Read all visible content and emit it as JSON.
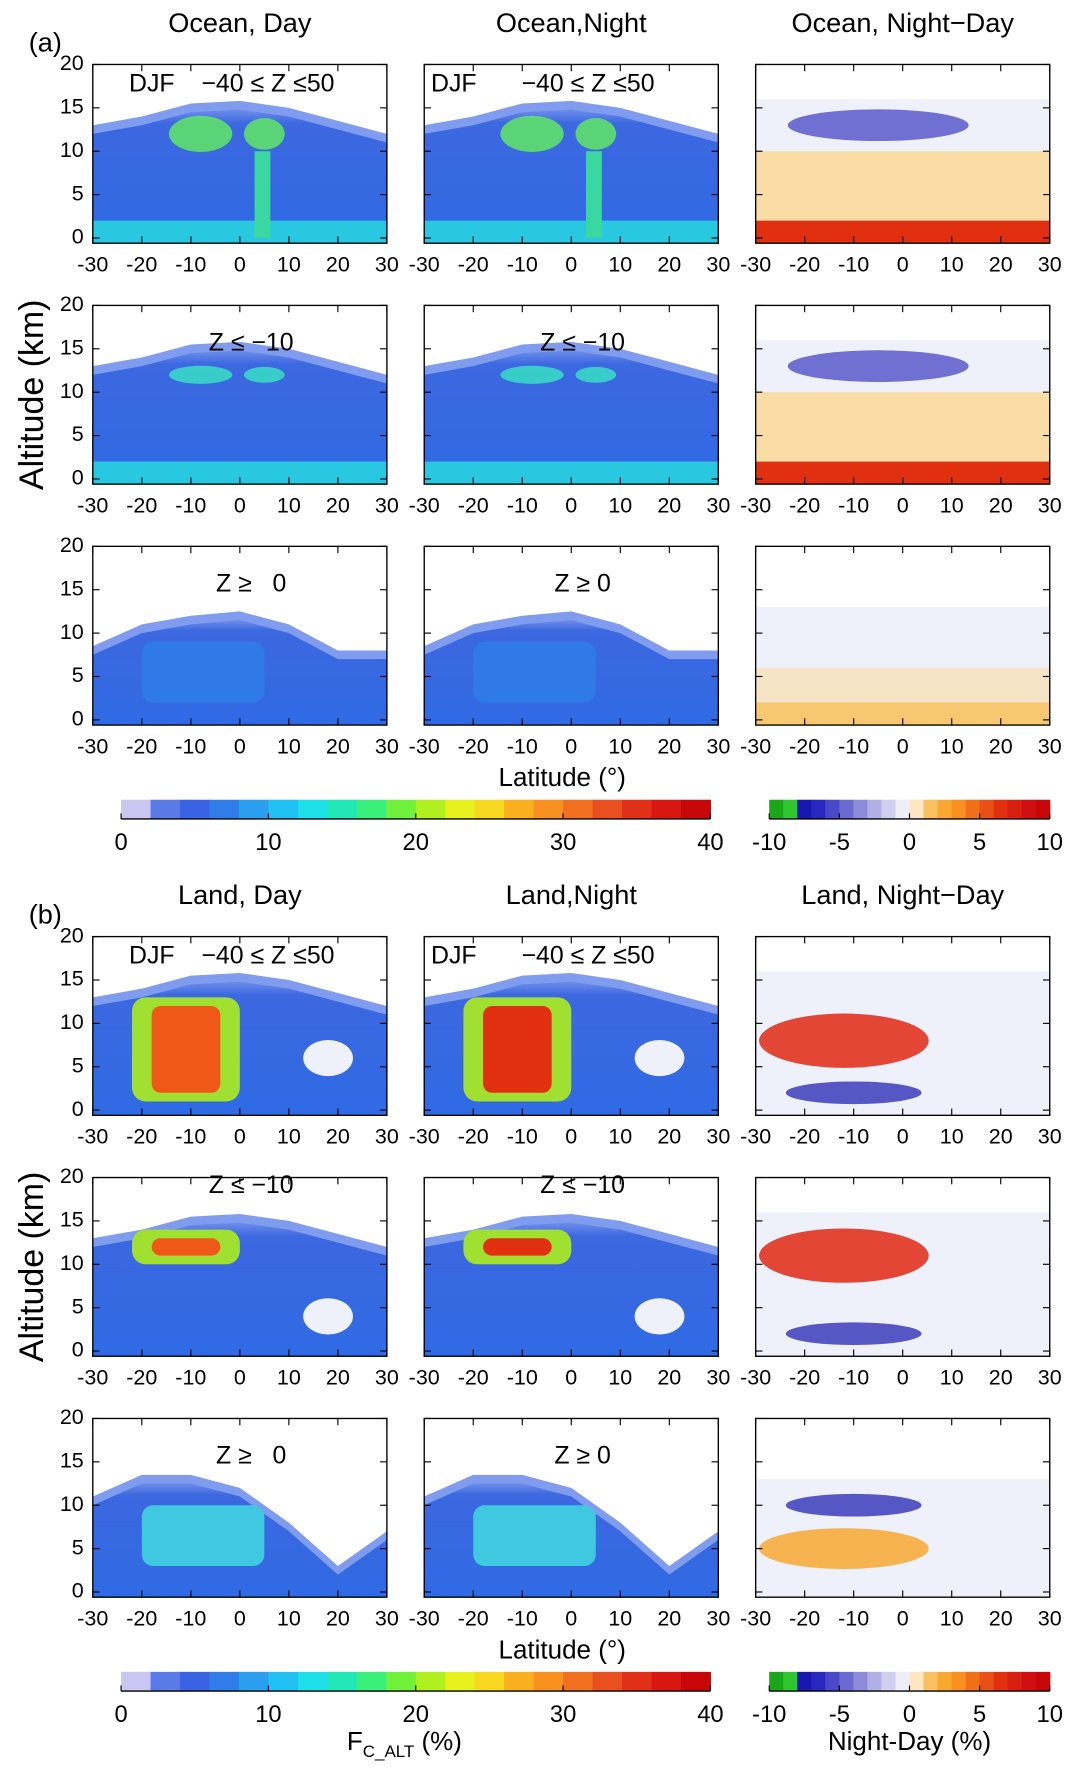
{
  "chart_data": {
    "type": "heatmap-grid",
    "xlim": [
      -30,
      30
    ],
    "xticks": [
      -30,
      -20,
      -10,
      0,
      10,
      20,
      30
    ],
    "ylim": [
      -0.6,
      20
    ],
    "yticks": [
      0,
      5,
      10,
      15,
      20
    ],
    "groups": [
      {
        "label": "(a)",
        "column_titles": [
          "Ocean, Day",
          "Ocean,Night",
          "Ocean, Night−Day"
        ],
        "rows": [
          [
            [
              "DJF",
              "−40 ≤ Z ≤50"
            ],
            [
              "DJF",
              "−40 ≤ Z ≤50"
            ]
          ],
          [
            [
              "Z ≤ −10"
            ],
            [
              "Z ≤ −10"
            ]
          ],
          [
            [
              "Z ≥   0"
            ],
            [
              "Z ≥ 0"
            ]
          ]
        ],
        "y_label": "Altitude (km)",
        "x_label": "Latitude (°)"
      },
      {
        "label": "(b)",
        "column_titles": [
          "Land, Day",
          "Land,Night",
          "Land, Night−Day"
        ],
        "rows": [
          [
            [
              "DJF",
              "−40 ≤ Z ≤50"
            ],
            [
              "DJF",
              "−40 ≤ Z ≤50"
            ]
          ],
          [
            [
              "Z ≤ −10"
            ],
            [
              "Z ≤ −10"
            ]
          ],
          [
            [
              "Z ≥   0"
            ],
            [
              "Z ≥ 0"
            ]
          ]
        ],
        "y_label": "Altitude (km)",
        "x_label": "Latitude (°)"
      }
    ],
    "colorbars": [
      {
        "lim": [
          0,
          40
        ],
        "ticks": [
          0,
          10,
          20,
          30,
          40
        ],
        "colors": [
          "#c9c6f2",
          "#5a7ae8",
          "#3a63e3",
          "#2f7de8",
          "#2a9ff0",
          "#21c0f2",
          "#1ee0e8",
          "#22e8b8",
          "#3af07a",
          "#70f23a",
          "#b0f01e",
          "#e8f01e",
          "#f8d81e",
          "#f8b01e",
          "#f89020",
          "#f07020",
          "#e85020",
          "#e03018",
          "#d81810",
          "#c80808"
        ],
        "label": {
          "main": "F",
          "sub": "C_ALT",
          "unit": " (%)"
        }
      },
      {
        "lim": [
          -10,
          10
        ],
        "ticks": [
          -10,
          -5,
          0,
          5,
          10
        ],
        "colors": [
          "#1aa81a",
          "#2ec82e",
          "#1818b0",
          "#2828c0",
          "#4848c8",
          "#6a6ad0",
          "#8c8cd8",
          "#b0b0e4",
          "#d0d0ee",
          "#eeeef8",
          "#fde7c0",
          "#f8c060",
          "#f8a830",
          "#f89020",
          "#f07018",
          "#e85018",
          "#e03010",
          "#d82010",
          "#d01010",
          "#c80808"
        ],
        "label": "Night-Day (%)"
      }
    ]
  }
}
